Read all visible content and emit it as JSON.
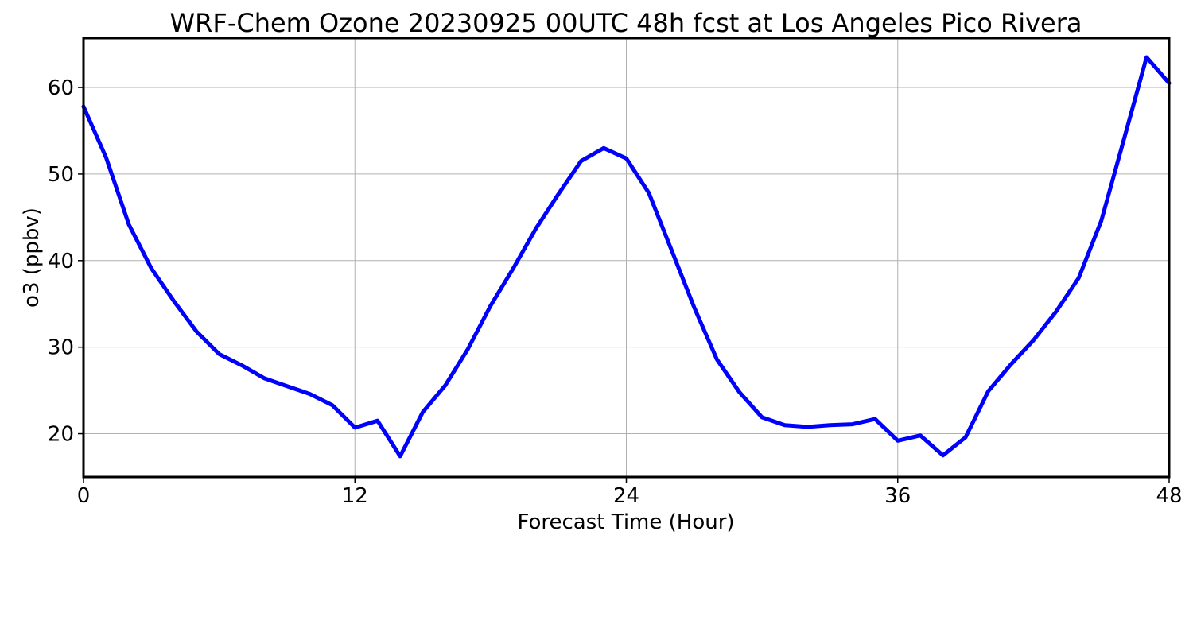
{
  "chart_data": {
    "type": "line",
    "title": "WRF-Chem Ozone  20230925 00UTC 48h fcst at Los Angeles Pico Rivera",
    "xlabel": "Forecast Time (Hour)",
    "ylabel": "o3  (ppbv)",
    "xlim": [
      0,
      48
    ],
    "ylim": [
      15,
      65.7
    ],
    "xticks": [
      0,
      12,
      24,
      36,
      48
    ],
    "yticks": [
      20,
      30,
      40,
      50,
      60
    ],
    "grid": true,
    "series": [
      {
        "color": "#0000ff",
        "x": [
          0,
          1,
          2,
          3,
          4,
          5,
          6,
          7,
          8,
          9,
          10,
          11,
          12,
          13,
          14,
          15,
          16,
          17,
          18,
          19,
          20,
          21,
          22,
          23,
          24,
          25,
          26,
          27,
          28,
          29,
          30,
          31,
          32,
          33,
          34,
          35,
          36,
          37,
          38,
          39,
          40,
          41,
          42,
          43,
          44,
          45,
          46,
          47,
          48
        ],
        "y": [
          57.8,
          51.9,
          44.2,
          39.1,
          35.3,
          31.8,
          29.2,
          27.9,
          26.4,
          25.5,
          24.6,
          23.3,
          20.7,
          21.5,
          17.4,
          22.5,
          25.6,
          29.8,
          34.8,
          39.1,
          43.7,
          47.7,
          51.5,
          53.0,
          51.8,
          47.8,
          41.2,
          34.6,
          28.6,
          24.8,
          21.9,
          21.0,
          20.8,
          21.0,
          21.1,
          21.7,
          19.2,
          19.8,
          17.5,
          19.6,
          24.9,
          28.0,
          30.8,
          34.1,
          38.0,
          44.6,
          54.0,
          63.5,
          60.5
        ]
      }
    ]
  }
}
